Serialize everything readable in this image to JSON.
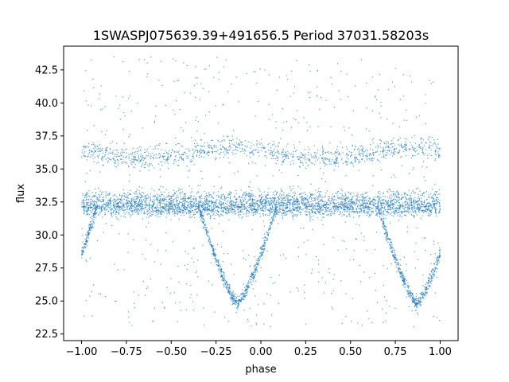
{
  "chart_data": {
    "type": "scatter",
    "title": "1SWASPJ075639.39+491656.5 Period 37031.58203s",
    "xlabel": "phase",
    "ylabel": "flux",
    "xlim": [
      -1.1,
      1.1
    ],
    "ylim": [
      22.0,
      44.3
    ],
    "xticks": [
      -1.0,
      -0.75,
      -0.5,
      -0.25,
      0.0,
      0.25,
      0.5,
      0.75,
      1.0
    ],
    "xtick_labels": [
      "−1.00",
      "−0.75",
      "−0.50",
      "−0.25",
      "0.00",
      "0.25",
      "0.50",
      "0.75",
      "1.00"
    ],
    "yticks": [
      22.5,
      25.0,
      27.5,
      30.0,
      32.5,
      35.0,
      37.5,
      40.0,
      42.5
    ],
    "ytick_labels": [
      "22.5",
      "25.0",
      "27.5",
      "30.0",
      "32.5",
      "35.0",
      "37.5",
      "40.0",
      "42.5"
    ],
    "grid": false,
    "marker_color": "#1f77b4",
    "series": [
      {
        "components": [
          {
            "kind": "band",
            "x_range": [
              -1.0,
              1.0
            ],
            "y_center": 32.6,
            "y_spread": 0.8
          },
          {
            "kind": "band",
            "x_range": [
              -1.0,
              1.0
            ],
            "y_center": 32.0,
            "y_spread": 0.6
          },
          {
            "kind": "upper_band",
            "x_range": [
              -1.0,
              1.0
            ],
            "y_center": 36.2,
            "y_spread": 0.7
          },
          {
            "kind": "eclipse",
            "x_center": -0.13,
            "half_width": 0.22,
            "y_min": 24.8,
            "y_base": 32.3
          },
          {
            "kind": "eclipse",
            "x_center": 0.87,
            "half_width": 0.22,
            "y_min": 24.8,
            "y_base": 32.3
          },
          {
            "kind": "eclipse",
            "x_center": -1.13,
            "half_width": 0.22,
            "y_min": 24.8,
            "y_base": 32.3
          },
          {
            "kind": "scatter_noise",
            "x_range": [
              -1.0,
              1.0
            ],
            "y_range": [
              23.0,
              43.5
            ]
          }
        ]
      }
    ]
  }
}
